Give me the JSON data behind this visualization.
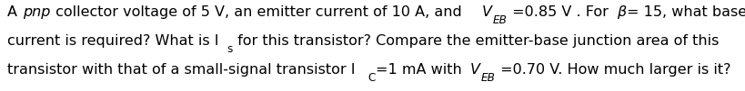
{
  "figsize": [
    8.2,
    1.01
  ],
  "dpi": 100,
  "background_color": "#ffffff",
  "text_color": "#000000",
  "font_size": 11.5,
  "lines": [
    {
      "segments": [
        {
          "text": "A ",
          "style": "normal"
        },
        {
          "text": "pnp",
          "style": "italic"
        },
        {
          "text": " collector voltage of 5 V, an emitter current of 10 A, and ",
          "style": "normal"
        },
        {
          "text": "V",
          "style": "italic"
        },
        {
          "text": "EB",
          "style": "italic_sub"
        },
        {
          "text": " =0.85 V . For ",
          "style": "normal"
        },
        {
          "text": "β",
          "style": "italic"
        },
        {
          "text": "= 15, what base",
          "style": "normal"
        }
      ]
    },
    {
      "segments": [
        {
          "text": "current is required? What is I",
          "style": "normal"
        },
        {
          "text": "s",
          "style": "normal_sub"
        },
        {
          "text": " for this transistor? Compare the emitter-base junction area of this",
          "style": "normal"
        }
      ]
    },
    {
      "segments": [
        {
          "text": "transistor with that of a small-signal transistor I",
          "style": "normal"
        },
        {
          "text": "C",
          "style": "normal_sub"
        },
        {
          "text": "=1 mA with ",
          "style": "normal"
        },
        {
          "text": "V",
          "style": "italic"
        },
        {
          "text": "EB",
          "style": "italic_sub"
        },
        {
          "text": " =0.70 V. How much larger is it?",
          "style": "normal"
        }
      ]
    }
  ]
}
